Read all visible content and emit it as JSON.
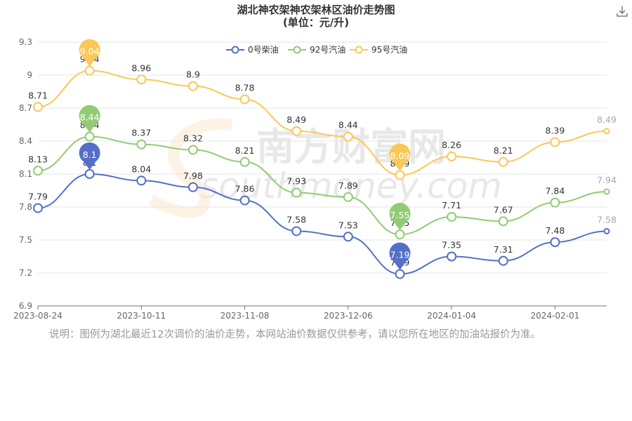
{
  "title_line1": "湖北神农架神农架林区油价走势图",
  "title_line2": "(单位：元/升)",
  "download_icon": "download-icon",
  "note": "说明：图例为湖北最近12次调价的油价走势，本网站油价数据仅供参考，请以您所在地区的加油站报价为准。",
  "watermark": {
    "cn": "南方财富网",
    "en": "southmoney.com"
  },
  "chart_data": {
    "type": "line",
    "categories": [
      "2023-08-24",
      "",
      "2023-10-11",
      "",
      "2023-11-08",
      "",
      "2023-12-06",
      "",
      "2024-01-04",
      "",
      "2024-02-01",
      ""
    ],
    "x_tick_labels": [
      "2023-08-24",
      "2023-10-11",
      "2023-11-08",
      "2023-12-06",
      "2024-01-04",
      "2024-02-01"
    ],
    "ylim": [
      6.9,
      9.3
    ],
    "y_ticks": [
      6.9,
      7.2,
      7.5,
      7.8,
      8.1,
      8.4,
      8.7,
      9,
      9.3
    ],
    "smooth": true,
    "legend_position": "top-center",
    "series": [
      {
        "name": "0号柴油",
        "color": "#5470c6",
        "values": [
          7.79,
          8.1,
          8.04,
          7.98,
          7.86,
          7.58,
          7.53,
          7.19,
          7.35,
          7.31,
          7.48,
          7.58
        ],
        "max_label": "8.1",
        "min_label": "7.19"
      },
      {
        "name": "92号汽油",
        "color": "#91cc75",
        "values": [
          8.13,
          8.44,
          8.37,
          8.32,
          8.21,
          7.93,
          7.89,
          7.55,
          7.71,
          7.67,
          7.84,
          7.94
        ],
        "max_label": "8.44",
        "min_label": "7.55"
      },
      {
        "name": "95号汽油",
        "color": "#fac858",
        "values": [
          8.71,
          9.04,
          8.96,
          8.9,
          8.78,
          8.49,
          8.44,
          8.09,
          8.26,
          8.21,
          8.39,
          8.49
        ],
        "max_label": "9.04",
        "min_label": "8.09"
      }
    ]
  }
}
